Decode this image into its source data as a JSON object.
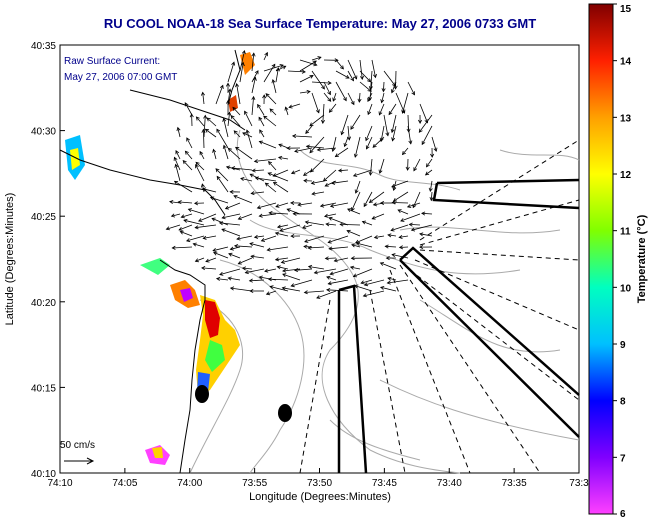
{
  "title": "RU COOL  NOAA-18  Sea Surface Temperature:  May 27, 2006 0733 GMT",
  "annotation_line1": "Raw Surface Current:",
  "annotation_line2": "May 27, 2006 07:00 GMT",
  "scale_label": "50 cm/s",
  "x_axis_label": "Longitude (Degrees:Minutes)",
  "y_axis_label": "Latitude (Degrees:Minutes)",
  "colorbar_label": "Temperature (°C)",
  "x_ticks": [
    "74:10",
    "74:05",
    "74:00",
    "73:55",
    "73:50",
    "73:45",
    "73:40",
    "73:35",
    "73:3"
  ],
  "y_ticks": [
    "40:35",
    "40:30",
    "40:25",
    "40:20",
    "40:15",
    "40:10"
  ],
  "colorbar_ticks": [
    "15",
    "14",
    "13",
    "12",
    "11",
    "10",
    "9",
    "8",
    "7",
    "6"
  ],
  "colorbar_colors": [
    "#ff40ff",
    "#8000ff",
    "#0000ff",
    "#00c0ff",
    "#00ffc0",
    "#80ff00",
    "#ffff00",
    "#ffa000",
    "#ff2000",
    "#800000"
  ]
}
